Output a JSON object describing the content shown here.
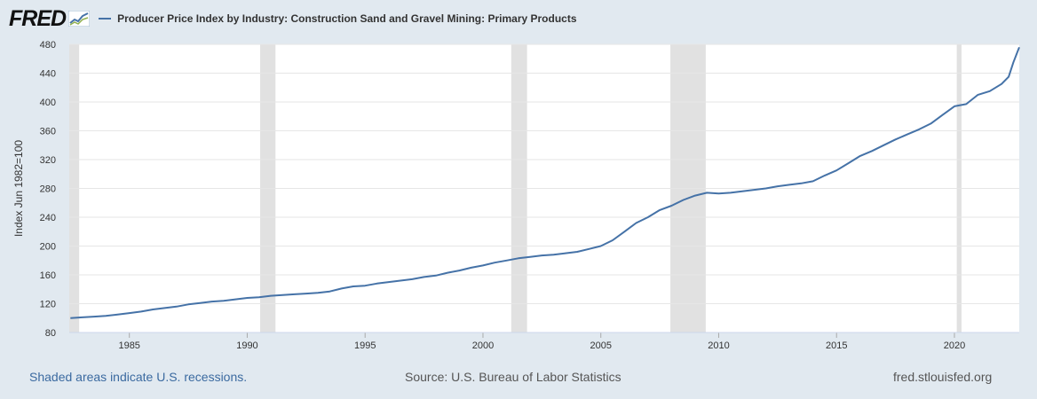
{
  "header": {
    "logo_text": "FRED",
    "series_title": "Producer Price Index by Industry: Construction Sand and Gravel Mining: Primary Products"
  },
  "footer": {
    "recession_note": "Shaded areas indicate U.S. recessions.",
    "source": "Source: U.S. Bureau of Labor Statistics",
    "site": "fred.stlouisfed.org"
  },
  "colors": {
    "line": "#4572a7",
    "recession": "#e1e1e1",
    "grid": "#e6e6e6",
    "background": "#e1e9f0"
  },
  "chart_data": {
    "type": "line",
    "title": "Producer Price Index by Industry: Construction Sand and Gravel Mining: Primary Products",
    "xlabel": "",
    "ylabel": "Index Jun 1982=100",
    "xlim": [
      1982.45,
      2022.75
    ],
    "ylim": [
      80,
      480
    ],
    "grid": true,
    "legend_placement": "top-left",
    "x_ticks": [
      1985,
      1990,
      1995,
      2000,
      2005,
      2010,
      2015,
      2020
    ],
    "y_ticks": [
      80,
      120,
      160,
      200,
      240,
      280,
      320,
      360,
      400,
      440,
      480
    ],
    "recessions": [
      [
        1982.45,
        1982.87
      ],
      [
        1990.55,
        1991.2
      ],
      [
        2001.2,
        2001.87
      ],
      [
        2007.95,
        2009.45
      ],
      [
        2020.1,
        2020.3
      ]
    ],
    "series": [
      {
        "name": "Producer Price Index by Industry: Construction Sand and Gravel Mining: Primary Products",
        "x": [
          1982.5,
          1983.0,
          1983.5,
          1984.0,
          1984.5,
          1985.0,
          1985.5,
          1986.0,
          1986.5,
          1987.0,
          1987.5,
          1988.0,
          1988.5,
          1989.0,
          1989.5,
          1990.0,
          1990.5,
          1991.0,
          1991.5,
          1992.0,
          1992.5,
          1993.0,
          1993.5,
          1994.0,
          1994.5,
          1995.0,
          1995.5,
          1996.0,
          1996.5,
          1997.0,
          1997.5,
          1998.0,
          1998.5,
          1999.0,
          1999.5,
          2000.0,
          2000.5,
          2001.0,
          2001.5,
          2002.0,
          2002.5,
          2003.0,
          2003.5,
          2004.0,
          2004.5,
          2005.0,
          2005.5,
          2006.0,
          2006.5,
          2007.0,
          2007.5,
          2008.0,
          2008.5,
          2009.0,
          2009.5,
          2010.0,
          2010.5,
          2011.0,
          2011.5,
          2012.0,
          2012.5,
          2013.0,
          2013.5,
          2014.0,
          2014.5,
          2015.0,
          2015.5,
          2016.0,
          2016.5,
          2017.0,
          2017.5,
          2018.0,
          2018.5,
          2019.0,
          2019.5,
          2020.0,
          2020.5,
          2021.0,
          2021.5,
          2022.0,
          2022.3,
          2022.5,
          2022.75
        ],
        "values": [
          100,
          101,
          102,
          103,
          105,
          107,
          109,
          112,
          114,
          116,
          119,
          121,
          123,
          124,
          126,
          128,
          129,
          131,
          132,
          133,
          134,
          135,
          137,
          141,
          144,
          145,
          148,
          150,
          152,
          154,
          157,
          159,
          163,
          166,
          170,
          173,
          177,
          180,
          183,
          185,
          187,
          188,
          190,
          192,
          196,
          200,
          208,
          220,
          232,
          240,
          250,
          256,
          264,
          270,
          274,
          273,
          274,
          276,
          278,
          280,
          283,
          285,
          287,
          290,
          298,
          305,
          315,
          325,
          332,
          340,
          348,
          355,
          362,
          370,
          382,
          394,
          397,
          410,
          415,
          425,
          435,
          455,
          476
        ]
      }
    ]
  }
}
